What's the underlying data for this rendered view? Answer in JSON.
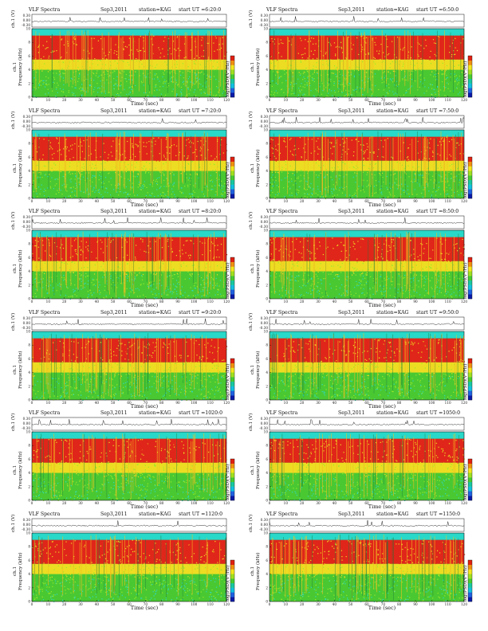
{
  "figure": {
    "panel_title": "VLF Spectra",
    "date": "Sep3,2011",
    "station": "station=KAG",
    "start_prefix": "start  UT  =",
    "x_axis_title": "Time  (sec)",
    "y_axis_titles": [
      "ch.1",
      "Frequency (kHz)"
    ],
    "waveform_axis_title": "ch.1 (V)",
    "colorbar_title": "log(PSD)(V²/Hz)",
    "panels": [
      {
        "id": "p1",
        "start": "6:20:0"
      },
      {
        "id": "p2",
        "start": "6:50:0"
      },
      {
        "id": "p3",
        "start": "7:20:0"
      },
      {
        "id": "p4",
        "start": "7:50:0"
      },
      {
        "id": "p5",
        "start": "8:20:0"
      },
      {
        "id": "p6",
        "start": "8:50:0"
      },
      {
        "id": "p7",
        "start": "9:20:0"
      },
      {
        "id": "p8",
        "start": "9:50:0"
      },
      {
        "id": "p9",
        "start": "1020:0"
      },
      {
        "id": "p10",
        "start": "1050:0"
      },
      {
        "id": "p11",
        "start": "1120:0"
      },
      {
        "id": "p12",
        "start": "1150:0"
      }
    ]
  },
  "chart_data": {
    "type": "heatmap",
    "x": {
      "label": "Time  (sec)",
      "range": [
        0,
        120
      ],
      "ticks": [
        0,
        10,
        20,
        30,
        40,
        50,
        60,
        70,
        80,
        90,
        100,
        110,
        120
      ]
    },
    "y": {
      "label": "Frequency (kHz)",
      "range": [
        0,
        10
      ],
      "ticks": [
        0,
        2,
        4,
        6,
        8,
        10
      ]
    },
    "waveform_axis": {
      "label": "ch.1 (V)",
      "ticks": [
        "0.30",
        "0.00",
        "-0.30"
      ]
    },
    "colorbar": {
      "label": "log(PSD)(V²/Hz)",
      "colors": [
        "#0a1aa8",
        "#1f62e0",
        "#10c0e0",
        "#18c8a0",
        "#48cc30",
        "#a0e020",
        "#f4e61e",
        "#f09010",
        "#e02010"
      ]
    },
    "frequency_bands": [
      {
        "from_khz": 0,
        "to_khz": 4,
        "level": "green"
      },
      {
        "from_khz": 4,
        "to_khz": 5.5,
        "level": "yellow"
      },
      {
        "from_khz": 5.5,
        "to_khz": 9,
        "level": "red"
      },
      {
        "from_khz": 9,
        "to_khz": 10,
        "level": "cyan"
      }
    ]
  }
}
